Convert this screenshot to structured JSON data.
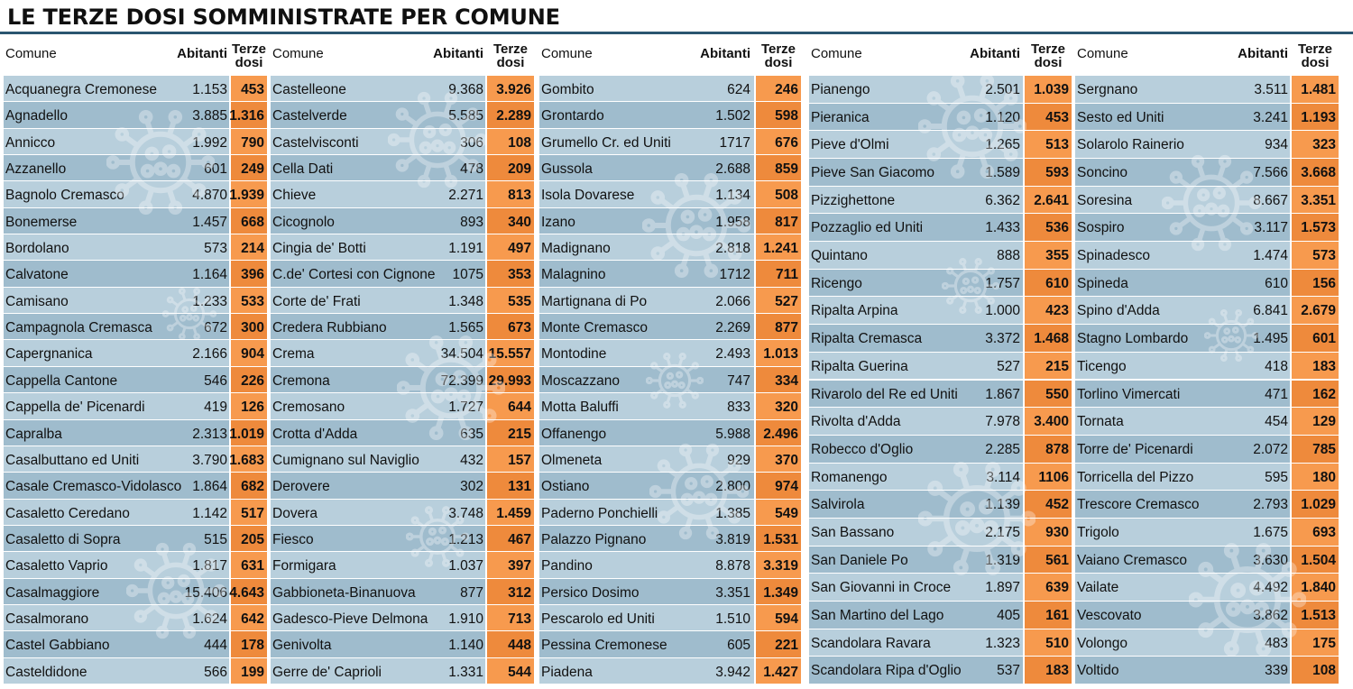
{
  "title": "LE TERZE DOSI SOMMINISTRATE PER COMUNE",
  "header": {
    "comune": "Comune",
    "abitanti": "Abitanti",
    "terze_line1": "Terze",
    "terze_line2": "dosi"
  },
  "columns": [
    {
      "rows": [
        [
          "Acquanegra Cremonese",
          "1.153",
          "453"
        ],
        [
          "Agnadello",
          "3.885",
          "1.316"
        ],
        [
          "Annicco",
          "1.992",
          "790"
        ],
        [
          "Azzanello",
          "601",
          "249"
        ],
        [
          "Bagnolo Cremasco",
          "4.870",
          "1.939"
        ],
        [
          "Bonemerse",
          "1.457",
          "668"
        ],
        [
          "Bordolano",
          "573",
          "214"
        ],
        [
          "Calvatone",
          "1.164",
          "396"
        ],
        [
          "Camisano",
          "1.233",
          "533"
        ],
        [
          "Campagnola Cremasca",
          "672",
          "300"
        ],
        [
          "Capergnanica",
          "2.166",
          "904"
        ],
        [
          "Cappella Cantone",
          "546",
          "226"
        ],
        [
          "Cappella de' Picenardi",
          "419",
          "126"
        ],
        [
          "Capralba",
          "2.313",
          "1.019"
        ],
        [
          "Casalbuttano ed Uniti",
          "3.790",
          "1.683"
        ],
        [
          "Casale Cremasco-Vidolasco",
          "1.864",
          "682"
        ],
        [
          "Casaletto Ceredano",
          "1.142",
          "517"
        ],
        [
          "Casaletto di Sopra",
          "515",
          "205"
        ],
        [
          "Casaletto Vaprio",
          "1.817",
          "631"
        ],
        [
          "Casalmaggiore",
          "15.406",
          "4.643"
        ],
        [
          "Casalmorano",
          "1.624",
          "642"
        ],
        [
          "Castel Gabbiano",
          "444",
          "178"
        ],
        [
          "Casteldidone",
          "566",
          "199"
        ]
      ]
    },
    {
      "rows": [
        [
          "Castelleone",
          "9.368",
          "3.926"
        ],
        [
          "Castelverde",
          "5.585",
          "2.289"
        ],
        [
          "Castelvisconti",
          "306",
          "108"
        ],
        [
          "Cella Dati",
          "478",
          "209"
        ],
        [
          "Chieve",
          "2.271",
          "813"
        ],
        [
          "Cicognolo",
          "893",
          "340"
        ],
        [
          "Cingia de' Botti",
          "1.191",
          "497"
        ],
        [
          "C.de' Cortesi con Cignone",
          "1075",
          "353"
        ],
        [
          "Corte de' Frati",
          "1.348",
          "535"
        ],
        [
          "Credera Rubbiano",
          "1.565",
          "673"
        ],
        [
          "Crema",
          "34.504",
          "15.557"
        ],
        [
          "Cremona",
          "72.399",
          "29.993"
        ],
        [
          "Cremosano",
          "1.727",
          "644"
        ],
        [
          "Crotta d'Adda",
          "635",
          "215"
        ],
        [
          "Cumignano sul Naviglio",
          "432",
          "157"
        ],
        [
          "Derovere",
          "302",
          "131"
        ],
        [
          "Dovera",
          "3.748",
          "1.459"
        ],
        [
          "Fiesco",
          "1.213",
          "467"
        ],
        [
          "Formigara",
          "1.037",
          "397"
        ],
        [
          "Gabbioneta-Binanuova",
          "877",
          "312"
        ],
        [
          "Gadesco-Pieve Delmona",
          "1.910",
          "713"
        ],
        [
          "Genivolta",
          "1.140",
          "448"
        ],
        [
          "Gerre de' Caprioli",
          "1.331",
          "544"
        ]
      ]
    },
    {
      "rows": [
        [
          "Gombito",
          "624",
          "246"
        ],
        [
          "Grontardo",
          "1.502",
          "598"
        ],
        [
          "Grumello Cr. ed Uniti",
          "1717",
          "676"
        ],
        [
          "Gussola",
          "2.688",
          "859"
        ],
        [
          "Isola Dovarese",
          "1.134",
          "508"
        ],
        [
          "Izano",
          "1.958",
          "817"
        ],
        [
          "Madignano",
          "2.818",
          "1.241"
        ],
        [
          "Malagnino",
          "1712",
          "711"
        ],
        [
          "Martignana di Po",
          "2.066",
          "527"
        ],
        [
          "Monte Cremasco",
          "2.269",
          "877"
        ],
        [
          "Montodine",
          "2.493",
          "1.013"
        ],
        [
          "Moscazzano",
          "747",
          "334"
        ],
        [
          "Motta Baluffi",
          "833",
          "320"
        ],
        [
          "Offanengo",
          "5.988",
          "2.496"
        ],
        [
          "Olmeneta",
          "929",
          "370"
        ],
        [
          "Ostiano",
          "2.800",
          "974"
        ],
        [
          "Paderno Ponchielli",
          "1.385",
          "549"
        ],
        [
          "Palazzo Pignano",
          "3.819",
          "1.531"
        ],
        [
          "Pandino",
          "8.878",
          "3.319"
        ],
        [
          "Persico Dosimo",
          "3.351",
          "1.349"
        ],
        [
          "Pescarolo ed Uniti",
          "1.510",
          "594"
        ],
        [
          "Pessina Cremonese",
          "605",
          "221"
        ],
        [
          "Piadena",
          "3.942",
          "1.427"
        ]
      ]
    },
    {
      "rows": [
        [
          "Pianengo",
          "2.501",
          "1.039"
        ],
        [
          "Pieranica",
          "1.120",
          "453"
        ],
        [
          "Pieve d'Olmi",
          "1.265",
          "513"
        ],
        [
          "Pieve San Giacomo",
          "1.589",
          "593"
        ],
        [
          "Pizzighettone",
          "6.362",
          "2.641"
        ],
        [
          "Pozzaglio ed Uniti",
          "1.433",
          "536"
        ],
        [
          "Quintano",
          "888",
          "355"
        ],
        [
          "Ricengo",
          "1.757",
          "610"
        ],
        [
          "Ripalta Arpina",
          "1.000",
          "423"
        ],
        [
          "Ripalta Cremasca",
          "3.372",
          "1.468"
        ],
        [
          "Ripalta Guerina",
          "527",
          "215"
        ],
        [
          "Rivarolo del Re ed Uniti",
          "1.867",
          "550"
        ],
        [
          "Rivolta d'Adda",
          "7.978",
          "3.400"
        ],
        [
          "Robecco d'Oglio",
          "2.285",
          "878"
        ],
        [
          "Romanengo",
          "3.114",
          "1106"
        ],
        [
          "Salvirola",
          "1.139",
          "452"
        ],
        [
          "San Bassano",
          "2.175",
          "930"
        ],
        [
          "San Daniele Po",
          "1.319",
          "561"
        ],
        [
          "San Giovanni in Croce",
          "1.897",
          "639"
        ],
        [
          "San Martino del Lago",
          "405",
          "161"
        ],
        [
          "Scandolara Ravara",
          "1.323",
          "510"
        ],
        [
          "Scandolara Ripa d'Oglio",
          "537",
          "183"
        ]
      ]
    },
    {
      "rows": [
        [
          "Sergnano",
          "3.511",
          "1.481"
        ],
        [
          "Sesto ed Uniti",
          "3.241",
          "1.193"
        ],
        [
          "Solarolo Rainerio",
          "934",
          "323"
        ],
        [
          "Soncino",
          "7.566",
          "3.668"
        ],
        [
          "Soresina",
          "8.667",
          "3.351"
        ],
        [
          "Sospiro",
          "3.117",
          "1.573"
        ],
        [
          "Spinadesco",
          "1.474",
          "573"
        ],
        [
          "Spineda",
          "610",
          "156"
        ],
        [
          "Spino d'Adda",
          "6.841",
          "2.679"
        ],
        [
          "Stagno Lombardo",
          "1.495",
          "601"
        ],
        [
          "Ticengo",
          "418",
          "183"
        ],
        [
          "Torlino Vimercati",
          "471",
          "162"
        ],
        [
          "Tornata",
          "454",
          "129"
        ],
        [
          "Torre de' Picenardi",
          "2.072",
          "785"
        ],
        [
          "Torricella del Pizzo",
          "595",
          "180"
        ],
        [
          "Trescore Cremasco",
          "2.793",
          "1.029"
        ],
        [
          "Trigolo",
          "1.675",
          "693"
        ],
        [
          "Vaiano Cremasco",
          "3.630",
          "1.504"
        ],
        [
          "Vailate",
          "4.492",
          "1.840"
        ],
        [
          "Vescovato",
          "3.862",
          "1.513"
        ],
        [
          "Volongo",
          "483",
          "175"
        ],
        [
          "Voltido",
          "339",
          "108"
        ]
      ]
    }
  ]
}
